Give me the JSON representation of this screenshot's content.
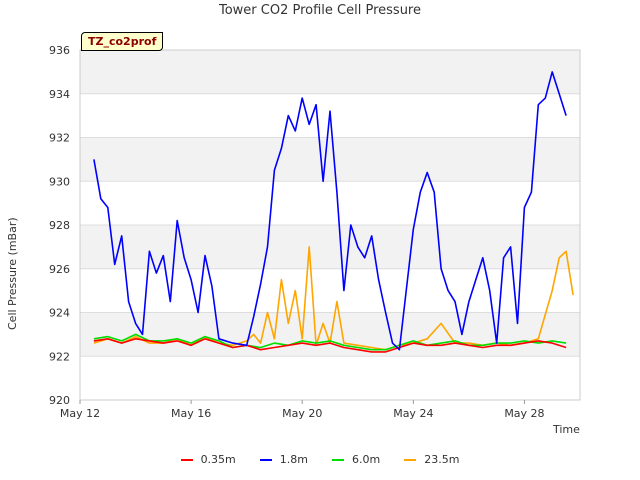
{
  "chart_data": {
    "type": "line",
    "title": "Tower CO2 Profile Cell Pressure",
    "badge": "TZ_co2prof",
    "xlabel": "Time",
    "ylabel": "Cell Pressure (mBar)",
    "xlim": [
      "2021-05-12",
      "2021-05-30"
    ],
    "ylim": [
      920,
      936
    ],
    "yticks": [
      920,
      922,
      924,
      926,
      928,
      930,
      932,
      934,
      936
    ],
    "xticks": [
      {
        "date": "2021-05-12",
        "label": "May 12"
      },
      {
        "date": "2021-05-16",
        "label": "May 16"
      },
      {
        "date": "2021-05-20",
        "label": "May 20"
      },
      {
        "date": "2021-05-24",
        "label": "May 24"
      },
      {
        "date": "2021-05-28",
        "label": "May 28"
      }
    ],
    "grid": true,
    "legend": "bottom",
    "series": [
      {
        "name": "0.35m",
        "color": "#ff0000",
        "x": [
          "2021-05-12T12:00",
          "2021-05-13T00:00",
          "2021-05-13T12:00",
          "2021-05-14T00:00",
          "2021-05-14T12:00",
          "2021-05-15T00:00",
          "2021-05-15T12:00",
          "2021-05-16T00:00",
          "2021-05-16T12:00",
          "2021-05-17T00:00",
          "2021-05-17T12:00",
          "2021-05-18T00:00",
          "2021-05-18T12:00",
          "2021-05-19T00:00",
          "2021-05-19T12:00",
          "2021-05-20T00:00",
          "2021-05-20T12:00",
          "2021-05-21T00:00",
          "2021-05-21T12:00",
          "2021-05-22T00:00",
          "2021-05-22T12:00",
          "2021-05-23T00:00",
          "2021-05-23T12:00",
          "2021-05-24T00:00",
          "2021-05-24T12:00",
          "2021-05-25T00:00",
          "2021-05-25T12:00",
          "2021-05-26T00:00",
          "2021-05-26T12:00",
          "2021-05-27T00:00",
          "2021-05-27T12:00",
          "2021-05-28T00:00",
          "2021-05-28T12:00",
          "2021-05-29T00:00",
          "2021-05-29T12:00"
        ],
        "y": [
          922.7,
          922.8,
          922.6,
          922.8,
          922.7,
          922.6,
          922.7,
          922.5,
          922.8,
          922.6,
          922.4,
          922.5,
          922.3,
          922.4,
          922.5,
          922.6,
          922.5,
          922.6,
          922.4,
          922.3,
          922.2,
          922.2,
          922.4,
          922.6,
          922.5,
          922.5,
          922.6,
          922.5,
          922.4,
          922.5,
          922.5,
          922.6,
          922.7,
          922.6,
          922.4
        ]
      },
      {
        "name": "1.8m",
        "color": "#0000ff",
        "x": [
          "2021-05-12T12:00",
          "2021-05-12T18:00",
          "2021-05-13T00:00",
          "2021-05-13T06:00",
          "2021-05-13T12:00",
          "2021-05-13T18:00",
          "2021-05-14T00:00",
          "2021-05-14T06:00",
          "2021-05-14T12:00",
          "2021-05-14T18:00",
          "2021-05-15T00:00",
          "2021-05-15T06:00",
          "2021-05-15T12:00",
          "2021-05-15T18:00",
          "2021-05-16T00:00",
          "2021-05-16T06:00",
          "2021-05-16T12:00",
          "2021-05-16T18:00",
          "2021-05-17T00:00",
          "2021-05-17T12:00",
          "2021-05-18T00:00",
          "2021-05-18T06:00",
          "2021-05-18T12:00",
          "2021-05-18T18:00",
          "2021-05-19T00:00",
          "2021-05-19T06:00",
          "2021-05-19T12:00",
          "2021-05-19T18:00",
          "2021-05-20T00:00",
          "2021-05-20T06:00",
          "2021-05-20T12:00",
          "2021-05-20T18:00",
          "2021-05-21T00:00",
          "2021-05-21T06:00",
          "2021-05-21T12:00",
          "2021-05-21T18:00",
          "2021-05-22T00:00",
          "2021-05-22T06:00",
          "2021-05-22T12:00",
          "2021-05-22T18:00",
          "2021-05-23T00:00",
          "2021-05-23T06:00",
          "2021-05-23T12:00",
          "2021-05-24T00:00",
          "2021-05-24T06:00",
          "2021-05-24T12:00",
          "2021-05-24T18:00",
          "2021-05-25T00:00",
          "2021-05-25T06:00",
          "2021-05-25T12:00",
          "2021-05-25T18:00",
          "2021-05-26T00:00",
          "2021-05-26T06:00",
          "2021-05-26T12:00",
          "2021-05-26T18:00",
          "2021-05-27T00:00",
          "2021-05-27T06:00",
          "2021-05-27T12:00",
          "2021-05-27T18:00",
          "2021-05-28T00:00",
          "2021-05-28T06:00",
          "2021-05-28T12:00",
          "2021-05-28T18:00",
          "2021-05-29T00:00",
          "2021-05-29T06:00",
          "2021-05-29T12:00"
        ],
        "y": [
          931.0,
          929.2,
          928.8,
          926.2,
          927.5,
          924.5,
          923.5,
          923.0,
          926.8,
          925.8,
          926.6,
          924.5,
          928.2,
          926.5,
          925.5,
          924.0,
          926.6,
          925.2,
          922.8,
          922.6,
          922.5,
          923.8,
          925.3,
          927.0,
          930.5,
          931.5,
          933.0,
          932.3,
          933.8,
          932.6,
          933.5,
          930.0,
          933.2,
          929.5,
          925.0,
          928.0,
          927.0,
          926.5,
          927.5,
          925.5,
          924.0,
          922.6,
          922.3,
          927.8,
          929.5,
          930.4,
          929.5,
          926.0,
          925.0,
          924.5,
          923.0,
          924.5,
          925.5,
          926.5,
          925.0,
          922.6,
          926.5,
          927.0,
          923.5,
          928.8,
          929.5,
          933.5,
          933.8,
          935.0,
          934.0,
          933.0
        ]
      },
      {
        "name": "6.0m",
        "color": "#00dd00",
        "x": [
          "2021-05-12T12:00",
          "2021-05-13T00:00",
          "2021-05-13T12:00",
          "2021-05-14T00:00",
          "2021-05-14T12:00",
          "2021-05-15T00:00",
          "2021-05-15T12:00",
          "2021-05-16T00:00",
          "2021-05-16T12:00",
          "2021-05-17T00:00",
          "2021-05-17T12:00",
          "2021-05-18T00:00",
          "2021-05-18T12:00",
          "2021-05-19T00:00",
          "2021-05-19T12:00",
          "2021-05-20T00:00",
          "2021-05-20T12:00",
          "2021-05-21T00:00",
          "2021-05-21T12:00",
          "2021-05-22T00:00",
          "2021-05-22T12:00",
          "2021-05-23T00:00",
          "2021-05-23T12:00",
          "2021-05-24T00:00",
          "2021-05-24T12:00",
          "2021-05-25T00:00",
          "2021-05-25T12:00",
          "2021-05-26T00:00",
          "2021-05-26T12:00",
          "2021-05-27T00:00",
          "2021-05-27T12:00",
          "2021-05-28T00:00",
          "2021-05-28T12:00",
          "2021-05-29T00:00",
          "2021-05-29T12:00"
        ],
        "y": [
          922.8,
          922.9,
          922.7,
          923.0,
          922.7,
          922.7,
          922.8,
          922.6,
          922.9,
          922.7,
          922.4,
          922.5,
          922.4,
          922.6,
          922.5,
          922.7,
          922.6,
          922.7,
          922.5,
          922.4,
          922.3,
          922.3,
          922.5,
          922.7,
          922.5,
          922.6,
          922.7,
          922.5,
          922.5,
          922.6,
          922.6,
          922.7,
          922.6,
          922.7,
          922.6
        ]
      },
      {
        "name": "23.5m",
        "color": "#ffa500",
        "x": [
          "2021-05-12T12:00",
          "2021-05-13T00:00",
          "2021-05-13T12:00",
          "2021-05-14T00:00",
          "2021-05-14T12:00",
          "2021-05-15T00:00",
          "2021-05-15T12:00",
          "2021-05-16T00:00",
          "2021-05-16T12:00",
          "2021-05-17T00:00",
          "2021-05-17T12:00",
          "2021-05-18T00:00",
          "2021-05-18T06:00",
          "2021-05-18T12:00",
          "2021-05-18T18:00",
          "2021-05-19T00:00",
          "2021-05-19T06:00",
          "2021-05-19T12:00",
          "2021-05-19T18:00",
          "2021-05-20T00:00",
          "2021-05-20T06:00",
          "2021-05-20T12:00",
          "2021-05-20T18:00",
          "2021-05-21T00:00",
          "2021-05-21T06:00",
          "2021-05-21T12:00",
          "2021-05-22T00:00",
          "2021-05-22T12:00",
          "2021-05-23T00:00",
          "2021-05-23T12:00",
          "2021-05-24T00:00",
          "2021-05-24T12:00",
          "2021-05-25T00:00",
          "2021-05-25T12:00",
          "2021-05-26T00:00",
          "2021-05-26T12:00",
          "2021-05-27T00:00",
          "2021-05-27T12:00",
          "2021-05-28T00:00",
          "2021-05-28T12:00",
          "2021-05-29T00:00",
          "2021-05-29T06:00",
          "2021-05-29T12:00",
          "2021-05-29T18:00"
        ],
        "y": [
          922.6,
          922.8,
          922.6,
          922.9,
          922.6,
          922.6,
          922.8,
          922.5,
          922.9,
          922.6,
          922.5,
          922.7,
          923.0,
          922.6,
          924.0,
          922.8,
          925.5,
          923.5,
          925.0,
          922.8,
          927.0,
          922.5,
          923.5,
          922.6,
          924.5,
          922.6,
          922.5,
          922.4,
          922.3,
          922.5,
          922.6,
          922.8,
          923.5,
          922.6,
          922.6,
          922.5,
          922.6,
          922.5,
          922.6,
          922.8,
          925.0,
          926.5,
          926.8,
          924.8
        ]
      }
    ]
  }
}
